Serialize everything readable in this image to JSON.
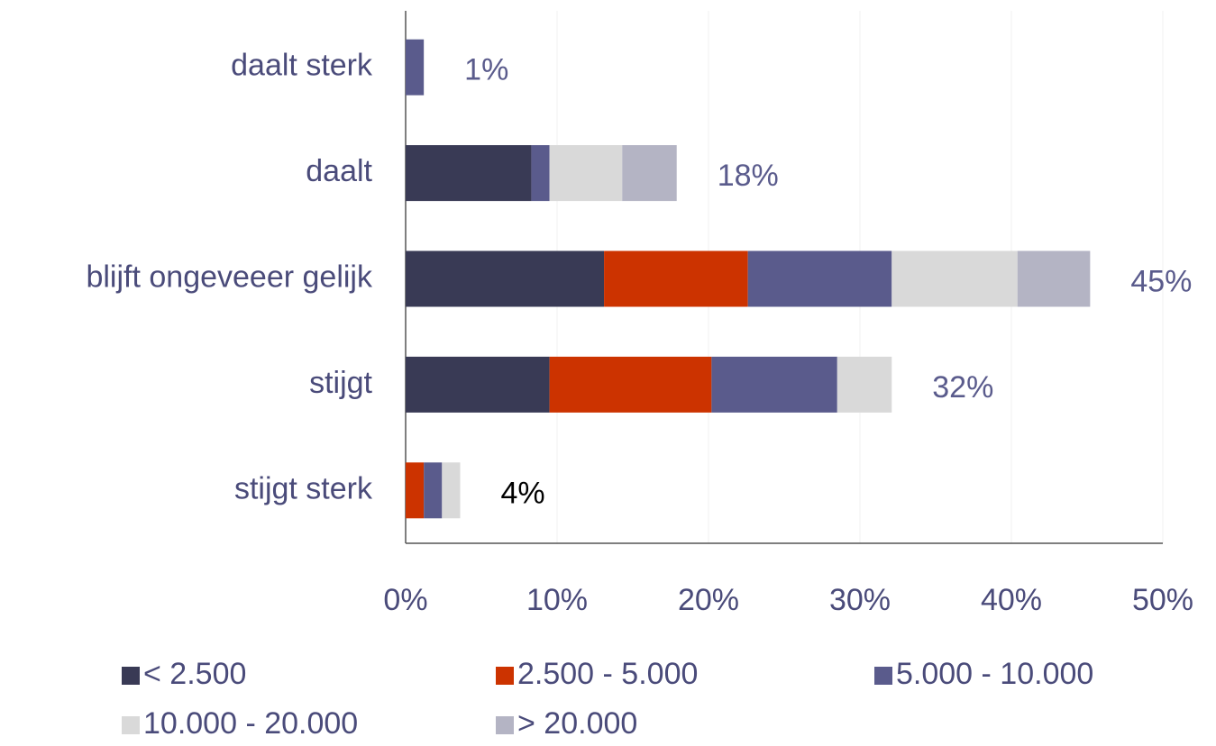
{
  "chart_data": {
    "type": "stacked-barh",
    "categories": [
      "daalt sterk",
      "daalt",
      "blijft ongeveeer gelijk",
      "stijgt",
      "stijgt sterk"
    ],
    "series": [
      {
        "name": "< 2.500",
        "color": "#393a55",
        "values": [
          0,
          8.3,
          13.1,
          9.5,
          0
        ]
      },
      {
        "name": "2.500 - 5.000",
        "color": "#cc3300",
        "values": [
          0,
          0,
          9.5,
          10.7,
          1.2
        ]
      },
      {
        "name": "5.000 - 10.000",
        "color": "#5a5b8c",
        "values": [
          1.2,
          1.2,
          9.5,
          8.3,
          1.2
        ]
      },
      {
        "name": "10.000 - 20.000",
        "color": "#d9d9d9",
        "values": [
          0,
          4.8,
          8.3,
          3.6,
          1.2
        ]
      },
      {
        "name": "> 20.000",
        "color": "#b4b4c4",
        "values": [
          0,
          3.6,
          4.8,
          0,
          0
        ]
      }
    ],
    "totals": [
      1,
      18,
      45,
      32,
      4
    ],
    "total_labels": [
      "1%",
      "18%",
      "45%",
      "32%",
      "4%"
    ],
    "total_label_colors": [
      "#5a5b8c",
      "#5a5b8c",
      "#5a5b8c",
      "#5a5b8c",
      "#000000"
    ],
    "xlim": [
      0,
      50
    ],
    "xticks": [
      {
        "value": 0,
        "label": "0%"
      },
      {
        "value": 10,
        "label": "10%"
      },
      {
        "value": 20,
        "label": "20%"
      },
      {
        "value": 30,
        "label": "30%"
      },
      {
        "value": 40,
        "label": "40%"
      },
      {
        "value": 50,
        "label": "50%"
      }
    ],
    "grid": true
  }
}
